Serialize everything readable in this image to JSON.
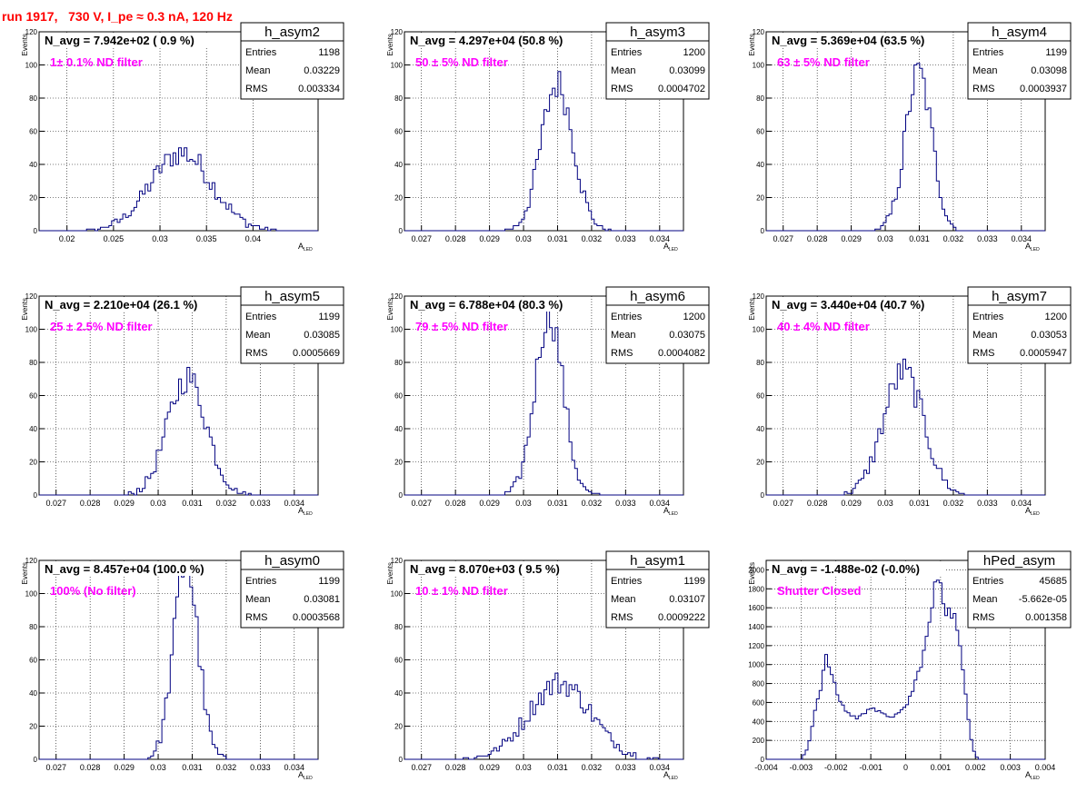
{
  "page": {
    "title": "run 1917,   730 V, I_pe ≈ 0.3 nA, 120 Hz"
  },
  "colors": {
    "histogram": "#000080",
    "annotation": "#ff00ff",
    "title": "#ff0000",
    "grid": "#000000"
  },
  "chart_data": [
    {
      "type": "bar",
      "name": "h_asym2",
      "navg": "N_avg = 7.942e+02 ( 0.9 %)",
      "annotation": "1± 0.1% ND filter",
      "stats": {
        "entries": "1198",
        "mean": "0.03229",
        "rms": "0.003334"
      },
      "xlabel": "A_LED",
      "ylabel": "Events",
      "xlim": [
        0.017,
        0.047
      ],
      "ylim": [
        0,
        120
      ],
      "xticks": [
        0.02,
        0.025,
        0.03,
        0.035,
        0.04
      ],
      "xtick_labels": [
        "0.02",
        "0.025",
        "0.03",
        "0.035",
        "0.04"
      ],
      "yticks": [
        0,
        20,
        40,
        60,
        80,
        100,
        120
      ],
      "ytick_labels": [
        "0",
        "20",
        "40",
        "60",
        "80",
        "100",
        "120"
      ],
      "hist_mean": 0.03229,
      "hist_sigma": 0.0033,
      "hist_peak": 47
    },
    {
      "type": "bar",
      "name": "h_asym3",
      "navg": "N_avg = 4.297e+04 (50.8 %)",
      "annotation": "50 ± 5% ND filter",
      "stats": {
        "entries": "1200",
        "mean": "0.03099",
        "rms": "0.0004702"
      },
      "xlabel": "A_LED",
      "ylabel": "Events",
      "xlim": [
        0.0265,
        0.0347
      ],
      "ylim": [
        0,
        120
      ],
      "xticks": [
        0.027,
        0.028,
        0.029,
        0.03,
        0.031,
        0.032,
        0.033,
        0.034
      ],
      "xtick_labels": [
        "0.027",
        "0.028",
        "0.029",
        "0.03",
        "0.031",
        "0.032",
        "0.033",
        "0.034"
      ],
      "yticks": [
        0,
        20,
        40,
        60,
        80,
        100,
        120
      ],
      "ytick_labels": [
        "0",
        "20",
        "40",
        "60",
        "80",
        "100",
        "120"
      ],
      "hist_mean": 0.03099,
      "hist_sigma": 0.00047,
      "hist_peak": 89
    },
    {
      "type": "bar",
      "name": "h_asym4",
      "navg": "N_avg = 5.369e+04 (63.5 %)",
      "annotation": "63 ± 5% ND filter",
      "stats": {
        "entries": "1199",
        "mean": "0.03098",
        "rms": "0.0003937"
      },
      "xlabel": "A_LED",
      "ylabel": "Events",
      "xlim": [
        0.0265,
        0.0347
      ],
      "ylim": [
        0,
        120
      ],
      "xticks": [
        0.027,
        0.028,
        0.029,
        0.03,
        0.031,
        0.032,
        0.033,
        0.034
      ],
      "xtick_labels": [
        "0.027",
        "0.028",
        "0.029",
        "0.03",
        "0.031",
        "0.032",
        "0.033",
        "0.034"
      ],
      "yticks": [
        0,
        20,
        40,
        60,
        80,
        100,
        120
      ],
      "ytick_labels": [
        "0",
        "20",
        "40",
        "60",
        "80",
        "100",
        "120"
      ],
      "hist_mean": 0.03098,
      "hist_sigma": 0.00039,
      "hist_peak": 95
    },
    {
      "type": "bar",
      "name": "h_asym5",
      "navg": "N_avg = 2.210e+04 (26.1 %)",
      "annotation": "25 ± 2.5% ND filter",
      "stats": {
        "entries": "1199",
        "mean": "0.03085",
        "rms": "0.0005669"
      },
      "xlabel": "A_LED",
      "ylabel": "Events",
      "xlim": [
        0.0265,
        0.0347
      ],
      "ylim": [
        0,
        120
      ],
      "xticks": [
        0.027,
        0.028,
        0.029,
        0.03,
        0.031,
        0.032,
        0.033,
        0.034
      ],
      "xtick_labels": [
        "0.027",
        "0.028",
        "0.029",
        "0.03",
        "0.031",
        "0.032",
        "0.033",
        "0.034"
      ],
      "yticks": [
        0,
        20,
        40,
        60,
        80,
        100,
        120
      ],
      "ytick_labels": [
        "0",
        "20",
        "40",
        "60",
        "80",
        "100",
        "120"
      ],
      "hist_mean": 0.03085,
      "hist_sigma": 0.00057,
      "hist_peak": 71
    },
    {
      "type": "bar",
      "name": "h_asym6",
      "navg": "N_avg = 6.788e+04 (80.3 %)",
      "annotation": "79 ± 5% ND filter",
      "stats": {
        "entries": "1200",
        "mean": "0.03075",
        "rms": "0.0004082"
      },
      "xlabel": "A_LED",
      "ylabel": "Events",
      "xlim": [
        0.0265,
        0.0347
      ],
      "ylim": [
        0,
        120
      ],
      "xticks": [
        0.027,
        0.028,
        0.029,
        0.03,
        0.031,
        0.032,
        0.033,
        0.034
      ],
      "xtick_labels": [
        "0.027",
        "0.028",
        "0.029",
        "0.03",
        "0.031",
        "0.032",
        "0.033",
        "0.034"
      ],
      "yticks": [
        0,
        20,
        40,
        60,
        80,
        100,
        120
      ],
      "ytick_labels": [
        "0",
        "20",
        "40",
        "60",
        "80",
        "100",
        "120"
      ],
      "hist_mean": 0.03075,
      "hist_sigma": 0.00041,
      "hist_peak": 110
    },
    {
      "type": "bar",
      "name": "h_asym7",
      "navg": "N_avg = 3.440e+04 (40.7 %)",
      "annotation": "40 ± 4% ND filter",
      "stats": {
        "entries": "1200",
        "mean": "0.03053",
        "rms": "0.0005947"
      },
      "xlabel": "A_LED",
      "ylabel": "Events",
      "xlim": [
        0.0265,
        0.0347
      ],
      "ylim": [
        0,
        120
      ],
      "xticks": [
        0.027,
        0.028,
        0.029,
        0.03,
        0.031,
        0.032,
        0.033,
        0.034
      ],
      "xtick_labels": [
        "0.027",
        "0.028",
        "0.029",
        "0.03",
        "0.031",
        "0.032",
        "0.033",
        "0.034"
      ],
      "yticks": [
        0,
        20,
        40,
        60,
        80,
        100,
        120
      ],
      "ytick_labels": [
        "0",
        "20",
        "40",
        "60",
        "80",
        "100",
        "120"
      ],
      "hist_mean": 0.03053,
      "hist_sigma": 0.00059,
      "hist_peak": 74
    },
    {
      "type": "bar",
      "name": "h_asym0",
      "navg": "N_avg = 8.457e+04 (100.0 %)",
      "annotation": "100% (No filter)",
      "stats": {
        "entries": "1199",
        "mean": "0.03081",
        "rms": "0.0003568"
      },
      "xlabel": "A_LED",
      "ylabel": "Events",
      "xlim": [
        0.0265,
        0.0347
      ],
      "ylim": [
        0,
        120
      ],
      "xticks": [
        0.027,
        0.028,
        0.029,
        0.03,
        0.031,
        0.032,
        0.033,
        0.034
      ],
      "xtick_labels": [
        "0.027",
        "0.028",
        "0.029",
        "0.03",
        "0.031",
        "0.032",
        "0.033",
        "0.034"
      ],
      "yticks": [
        0,
        20,
        40,
        60,
        80,
        100,
        120
      ],
      "ytick_labels": [
        "0",
        "20",
        "40",
        "60",
        "80",
        "100",
        "120"
      ],
      "hist_mean": 0.03081,
      "hist_sigma": 0.00036,
      "hist_peak": 118
    },
    {
      "type": "bar",
      "name": "h_asym1",
      "navg": "N_avg = 8.070e+03 ( 9.5 %)",
      "annotation": "10 ± 1% ND filter",
      "stats": {
        "entries": "1199",
        "mean": "0.03107",
        "rms": "0.0009222"
      },
      "xlabel": "A_LED",
      "ylabel": "Events",
      "xlim": [
        0.0265,
        0.0347
      ],
      "ylim": [
        0,
        120
      ],
      "xticks": [
        0.027,
        0.028,
        0.029,
        0.03,
        0.031,
        0.032,
        0.033,
        0.034
      ],
      "xtick_labels": [
        "0.027",
        "0.028",
        "0.029",
        "0.03",
        "0.031",
        "0.032",
        "0.033",
        "0.034"
      ],
      "yticks": [
        0,
        20,
        40,
        60,
        80,
        100,
        120
      ],
      "ytick_labels": [
        "0",
        "20",
        "40",
        "60",
        "80",
        "100",
        "120"
      ],
      "hist_mean": 0.03107,
      "hist_sigma": 0.00092,
      "hist_peak": 46
    },
    {
      "type": "bar",
      "name": "hPed_asym",
      "navg": "N_avg = -1.488e-02 (-0.0%)",
      "annotation": "Shutter Closed",
      "stats": {
        "entries": "45685",
        "mean": "-5.662e-05",
        "rms": "0.001358"
      },
      "xlabel": "A_LED",
      "ylabel": "Events",
      "xlim": [
        -0.004,
        0.004
      ],
      "ylim": [
        0,
        2100
      ],
      "xticks": [
        -0.004,
        -0.003,
        -0.002,
        -0.001,
        0,
        0.001,
        0.002,
        0.003,
        0.004
      ],
      "xtick_labels": [
        "-0.004",
        "-0.003",
        "-0.002",
        "-0.001",
        "0",
        "0.001",
        "0.002",
        "0.003",
        "0.004"
      ],
      "yticks": [
        0,
        200,
        400,
        600,
        800,
        1000,
        1200,
        1400,
        1600,
        1800,
        2000
      ],
      "ytick_labels": [
        "0",
        "200",
        "400",
        "600",
        "800",
        "1000",
        "1200",
        "1400",
        "1600",
        "1800",
        "2000"
      ],
      "ped_profile": [
        [
          -0.003,
          0
        ],
        [
          -0.0028,
          120
        ],
        [
          -0.0026,
          520
        ],
        [
          -0.0024,
          820
        ],
        [
          -0.0023,
          1080
        ],
        [
          -0.0022,
          1000
        ],
        [
          -0.0021,
          860
        ],
        [
          -0.002,
          720
        ],
        [
          -0.0018,
          560
        ],
        [
          -0.0016,
          470
        ],
        [
          -0.0014,
          440
        ],
        [
          -0.0012,
          470
        ],
        [
          -0.0011,
          540
        ],
        [
          -0.001,
          560
        ],
        [
          -0.0009,
          540
        ],
        [
          -0.0008,
          500
        ],
        [
          -0.0006,
          460
        ],
        [
          -0.0004,
          460
        ],
        [
          -0.0002,
          470
        ],
        [
          0.0,
          560
        ],
        [
          0.0002,
          720
        ],
        [
          0.0004,
          960
        ],
        [
          0.0006,
          1260
        ],
        [
          0.0008,
          1700
        ],
        [
          0.0009,
          1940
        ],
        [
          0.001,
          1900
        ],
        [
          0.0011,
          1650
        ],
        [
          0.0012,
          1550
        ],
        [
          0.0013,
          1560
        ],
        [
          0.0014,
          1500
        ],
        [
          0.0015,
          1300
        ],
        [
          0.0016,
          1050
        ],
        [
          0.0017,
          760
        ],
        [
          0.0018,
          440
        ],
        [
          0.0019,
          160
        ],
        [
          0.002,
          40
        ],
        [
          0.0021,
          0
        ]
      ]
    }
  ]
}
